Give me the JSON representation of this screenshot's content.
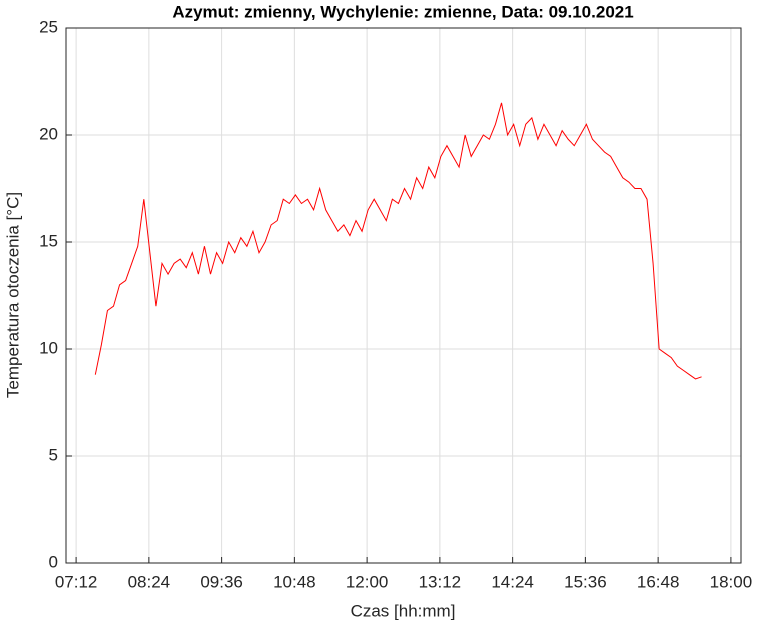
{
  "chart_data": {
    "type": "line",
    "title": "Azymut: zmienny, Wychylenie: zmienne, Data: 09.10.2021",
    "x_label": "Czas [hh:mm]",
    "y_label": "Temperatura otoczenia [°C]",
    "xlim": [
      422,
      1090
    ],
    "ylim": [
      0,
      25
    ],
    "xticks": [
      {
        "value": 432,
        "label": "07:12"
      },
      {
        "value": 504,
        "label": "08:24"
      },
      {
        "value": 576,
        "label": "09:36"
      },
      {
        "value": 648,
        "label": "10:48"
      },
      {
        "value": 720,
        "label": "12:00"
      },
      {
        "value": 792,
        "label": "13:12"
      },
      {
        "value": 864,
        "label": "14:24"
      },
      {
        "value": 936,
        "label": "15:36"
      },
      {
        "value": 1008,
        "label": "16:48"
      },
      {
        "value": 1080,
        "label": "18:00"
      }
    ],
    "yticks": [
      0,
      5,
      10,
      15,
      20,
      25
    ],
    "grid": true,
    "x": [
      451,
      457,
      463,
      469,
      475,
      481,
      487,
      493,
      499,
      505,
      511,
      517,
      523,
      529,
      535,
      541,
      547,
      553,
      559,
      565,
      571,
      577,
      583,
      589,
      595,
      601,
      607,
      613,
      619,
      625,
      631,
      637,
      643,
      649,
      655,
      661,
      667,
      673,
      679,
      685,
      691,
      697,
      703,
      709,
      715,
      721,
      727,
      733,
      739,
      745,
      751,
      757,
      763,
      769,
      775,
      781,
      787,
      793,
      799,
      805,
      811,
      817,
      823,
      829,
      835,
      841,
      847,
      853,
      859,
      865,
      871,
      877,
      883,
      889,
      895,
      901,
      907,
      913,
      919,
      925,
      931,
      937,
      943,
      949,
      955,
      961,
      967,
      973,
      979,
      985,
      991,
      997,
      1003,
      1009,
      1015,
      1021,
      1027,
      1033,
      1039,
      1045,
      1051
    ],
    "series": [
      {
        "color": "#ff0000",
        "values": [
          8.8,
          10.2,
          11.8,
          12.0,
          13.0,
          13.2,
          14.0,
          14.8,
          17.0,
          14.5,
          12.0,
          14.0,
          13.5,
          14.0,
          14.2,
          13.8,
          14.5,
          13.5,
          14.8,
          13.5,
          14.5,
          14.0,
          15.0,
          14.5,
          15.2,
          14.8,
          15.5,
          14.5,
          15.0,
          15.8,
          16.0,
          17.0,
          16.8,
          17.2,
          16.8,
          17.0,
          16.5,
          17.5,
          16.5,
          16.0,
          15.5,
          15.8,
          15.3,
          16.0,
          15.5,
          16.5,
          17.0,
          16.5,
          16.0,
          17.0,
          16.8,
          17.5,
          17.0,
          18.0,
          17.5,
          18.5,
          18.0,
          19.0,
          19.5,
          19.0,
          18.5,
          20.0,
          19.0,
          19.5,
          20.0,
          19.8,
          20.5,
          21.5,
          20.0,
          20.5,
          19.5,
          20.5,
          20.8,
          19.8,
          20.5,
          20.0,
          19.5,
          20.2,
          19.8,
          19.5,
          20.0,
          20.5,
          19.8,
          19.5,
          19.2,
          19.0,
          18.5,
          18.0,
          17.8,
          17.5,
          17.5,
          17.0,
          14.0,
          10.0,
          9.8,
          9.6,
          9.2,
          9.0,
          8.8,
          8.6,
          8.7
        ]
      }
    ]
  }
}
